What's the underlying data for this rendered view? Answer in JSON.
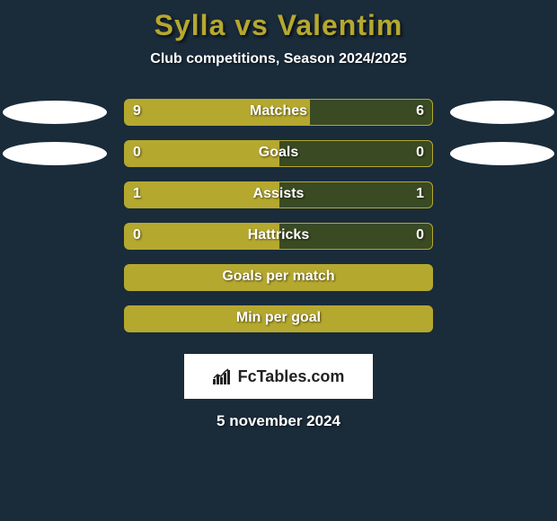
{
  "background_color": "#1a2b3a",
  "accent_color": "#b5a82f",
  "bar_fill_dark": "#3a4a22",
  "ellipse_color": "#ffffff",
  "text_color": "#ffffff",
  "title": "Sylla vs Valentim",
  "subtitle": "Club competitions, Season 2024/2025",
  "title_fontsize": 32,
  "subtitle_fontsize": 16,
  "label_fontsize": 16,
  "bar_container_width": 344,
  "bar_row_height": 46,
  "rows": [
    {
      "label": "Matches",
      "left_val": "9",
      "right_val": "6",
      "left_pct": 60,
      "right_pct": 40,
      "show_ellipses": true
    },
    {
      "label": "Goals",
      "left_val": "0",
      "right_val": "0",
      "left_pct": 50,
      "right_pct": 50,
      "show_ellipses": true
    },
    {
      "label": "Assists",
      "left_val": "1",
      "right_val": "1",
      "left_pct": 50,
      "right_pct": 50,
      "show_ellipses": false
    },
    {
      "label": "Hattricks",
      "left_val": "0",
      "right_val": "0",
      "left_pct": 50,
      "right_pct": 50,
      "show_ellipses": false
    },
    {
      "label": "Goals per match",
      "left_val": "",
      "right_val": "",
      "left_pct": 100,
      "right_pct": 0,
      "show_ellipses": false
    },
    {
      "label": "Min per goal",
      "left_val": "",
      "right_val": "",
      "left_pct": 100,
      "right_pct": 0,
      "show_ellipses": false
    }
  ],
  "logo_text": "FcTables.com",
  "date": "5 november 2024"
}
